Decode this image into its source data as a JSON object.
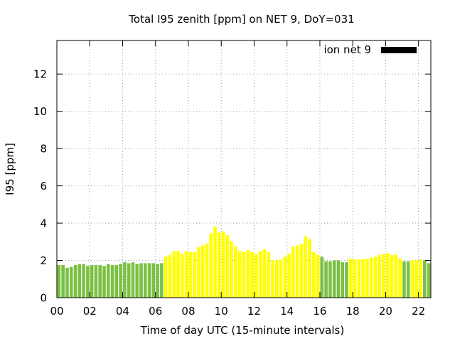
{
  "chart_data": {
    "type": "bar",
    "title": "Total I95 zenith [ppm] on NET 9, DoY=031",
    "xlabel": "Time of day UTC (15-minute intervals)",
    "ylabel": "I95 [ppm]",
    "xlim": [
      0,
      22.75
    ],
    "ylim": [
      0,
      13.8
    ],
    "x_ticks": [
      "00",
      "02",
      "04",
      "06",
      "08",
      "10",
      "12",
      "14",
      "16",
      "18",
      "20",
      "22"
    ],
    "y_ticks": [
      "0",
      "2",
      "4",
      "6",
      "8",
      "10",
      "12"
    ],
    "grid": true,
    "legend": {
      "label": "ion net 9",
      "color": "#000000",
      "position": "top-right"
    },
    "colors": {
      "green": "#7bc043",
      "yellow": "#ffff00"
    },
    "bar_interval_hours": 0.25,
    "series": [
      {
        "name": "ion net 9",
        "values": [
          1.75,
          1.75,
          1.6,
          1.65,
          1.75,
          1.8,
          1.8,
          1.7,
          1.75,
          1.75,
          1.75,
          1.7,
          1.8,
          1.75,
          1.75,
          1.8,
          1.9,
          1.85,
          1.9,
          1.8,
          1.85,
          1.85,
          1.85,
          1.85,
          1.8,
          1.85,
          2.2,
          2.3,
          2.5,
          2.5,
          2.35,
          2.5,
          2.45,
          2.45,
          2.7,
          2.8,
          2.9,
          3.45,
          3.8,
          3.5,
          3.55,
          3.35,
          3.05,
          2.75,
          2.5,
          2.45,
          2.55,
          2.45,
          2.35,
          2.5,
          2.6,
          2.45,
          2.0,
          2.0,
          2.05,
          2.2,
          2.35,
          2.75,
          2.8,
          2.9,
          3.3,
          3.15,
          2.45,
          2.3,
          2.2,
          1.95,
          1.95,
          2.0,
          2.0,
          1.9,
          1.9,
          2.1,
          2.05,
          2.05,
          2.05,
          2.1,
          2.15,
          2.2,
          2.3,
          2.35,
          2.4,
          2.3,
          2.3,
          2.1,
          1.95,
          1.95,
          2.0,
          2.0,
          2.05,
          2.0,
          1.85
        ],
        "colors": [
          "green",
          "green",
          "green",
          "green",
          "green",
          "green",
          "green",
          "green",
          "green",
          "green",
          "green",
          "green",
          "green",
          "green",
          "green",
          "green",
          "green",
          "green",
          "green",
          "green",
          "green",
          "green",
          "green",
          "green",
          "green",
          "green",
          "yellow",
          "yellow",
          "yellow",
          "yellow",
          "yellow",
          "yellow",
          "yellow",
          "yellow",
          "yellow",
          "yellow",
          "yellow",
          "yellow",
          "yellow",
          "yellow",
          "yellow",
          "yellow",
          "yellow",
          "yellow",
          "yellow",
          "yellow",
          "yellow",
          "yellow",
          "yellow",
          "yellow",
          "yellow",
          "yellow",
          "yellow",
          "yellow",
          "yellow",
          "yellow",
          "yellow",
          "yellow",
          "yellow",
          "yellow",
          "yellow",
          "yellow",
          "yellow",
          "yellow",
          "green",
          "green",
          "green",
          "green",
          "green",
          "green",
          "green",
          "yellow",
          "yellow",
          "yellow",
          "yellow",
          "yellow",
          "yellow",
          "yellow",
          "yellow",
          "yellow",
          "yellow",
          "yellow",
          "yellow",
          "yellow",
          "green",
          "green",
          "yellow",
          "yellow",
          "yellow",
          "green",
          "green"
        ]
      }
    ]
  }
}
